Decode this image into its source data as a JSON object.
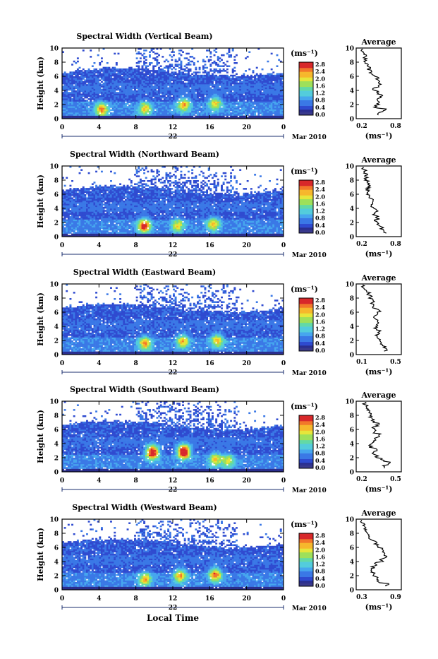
{
  "figure": {
    "bottom_axis_label": "Local Time"
  },
  "shared": {
    "ylabel": "Height (km)",
    "ticks_x": [
      "0",
      "4",
      "8",
      "12",
      "16",
      "20",
      "0"
    ],
    "ticks_y": [
      "0",
      "2",
      "4",
      "6",
      "8",
      "10"
    ],
    "day_label": "22",
    "month_label": "Mar 2010",
    "unit_label": "(ms⁻¹)",
    "colorbar_ticks": [
      "0.0",
      "0.4",
      "0.8",
      "1.2",
      "1.6",
      "2.0",
      "2.4",
      "2.8"
    ],
    "avg_title": "Average",
    "avg_xlabel": "(ms⁻¹)"
  },
  "colors": {
    "colormap": [
      "#2a2e8f",
      "#2f4bd0",
      "#3a78e6",
      "#46a6ee",
      "#53ccdc",
      "#63d9a6",
      "#9ee05a",
      "#e6e63a",
      "#f6b72c",
      "#f2772a",
      "#d8282a"
    ],
    "low_floor": "#3a3a8c"
  },
  "chart_data": [
    {
      "type": "heatmap",
      "title": "Spectral Width (Vertical Beam)",
      "xlim": [
        0,
        24
      ],
      "ylim": [
        0,
        10
      ],
      "colorbar": [
        0.0,
        2.8
      ],
      "hotspots": [
        {
          "t": 4.3,
          "h": 1.3,
          "v": 1.7
        },
        {
          "t": 9.0,
          "h": 1.4,
          "v": 1.4
        },
        {
          "t": 13.2,
          "h": 2.0,
          "v": 1.6
        },
        {
          "t": 16.6,
          "h": 2.2,
          "v": 1.4
        }
      ],
      "average_profile": {
        "xlim": [
          0.2,
          0.8
        ],
        "xticks": [
          "0.2",
          "0.8"
        ],
        "height": [
          0.5,
          1.0,
          1.5,
          2.0,
          2.5,
          3.0,
          3.5,
          4.0,
          4.5,
          5.0,
          5.5,
          6.0,
          6.5,
          7.0,
          7.5,
          8.0,
          8.5,
          9.0,
          9.5
        ],
        "width": [
          0.5,
          0.6,
          0.45,
          0.5,
          0.48,
          0.55,
          0.5,
          0.42,
          0.52,
          0.5,
          0.48,
          0.4,
          0.35,
          0.32,
          0.28,
          0.27,
          0.26,
          0.25,
          0.22
        ]
      }
    },
    {
      "type": "heatmap",
      "title": "Spectral Width (Northward Beam)",
      "xlim": [
        0,
        24
      ],
      "ylim": [
        0,
        10
      ],
      "colorbar": [
        0.0,
        2.8
      ],
      "hotspots": [
        {
          "t": 8.9,
          "h": 1.5,
          "v": 2.1
        },
        {
          "t": 12.5,
          "h": 1.6,
          "v": 1.3
        },
        {
          "t": 16.4,
          "h": 1.8,
          "v": 1.5
        }
      ],
      "average_profile": {
        "xlim": [
          0.2,
          0.8
        ],
        "xticks": [
          "0.2",
          "0.8"
        ],
        "height": [
          0.5,
          1.0,
          1.5,
          2.0,
          2.5,
          3.0,
          3.5,
          4.0,
          4.5,
          5.0,
          5.5,
          6.0,
          6.5,
          7.0,
          7.5,
          8.0,
          8.5,
          9.0,
          9.5
        ],
        "width": [
          0.6,
          0.55,
          0.5,
          0.45,
          0.48,
          0.42,
          0.46,
          0.38,
          0.36,
          0.4,
          0.35,
          0.32,
          0.3,
          0.34,
          0.3,
          0.28,
          0.27,
          0.25,
          0.22
        ]
      }
    },
    {
      "type": "heatmap",
      "title": "Spectral Width (Eastward Beam)",
      "xlim": [
        0,
        24
      ],
      "ylim": [
        0,
        10
      ],
      "colorbar": [
        0.0,
        2.8
      ],
      "hotspots": [
        {
          "t": 9.0,
          "h": 1.6,
          "v": 1.6
        },
        {
          "t": 13.1,
          "h": 1.9,
          "v": 1.5
        },
        {
          "t": 16.8,
          "h": 2.0,
          "v": 1.4
        }
      ],
      "average_profile": {
        "xlim": [
          0.1,
          0.5
        ],
        "xticks": [
          "0.1",
          "0.5"
        ],
        "height": [
          0.5,
          1.0,
          1.5,
          2.0,
          2.5,
          3.0,
          3.5,
          4.0,
          4.5,
          5.0,
          5.5,
          6.0,
          6.5,
          7.0,
          7.5,
          8.0,
          8.5,
          9.0,
          9.5
        ],
        "width": [
          0.38,
          0.36,
          0.33,
          0.3,
          0.28,
          0.3,
          0.26,
          0.28,
          0.3,
          0.26,
          0.27,
          0.3,
          0.25,
          0.22,
          0.24,
          0.2,
          0.18,
          0.15,
          0.12
        ]
      }
    },
    {
      "type": "heatmap",
      "title": "Spectral Width (Southward Beam)",
      "xlim": [
        0,
        24
      ],
      "ylim": [
        0,
        10
      ],
      "colorbar": [
        0.0,
        2.8
      ],
      "hotspots": [
        {
          "t": 9.8,
          "h": 2.8,
          "v": 2.6
        },
        {
          "t": 13.2,
          "h": 2.9,
          "v": 2.8
        },
        {
          "t": 16.6,
          "h": 1.8,
          "v": 1.4
        },
        {
          "t": 18.0,
          "h": 1.6,
          "v": 1.2
        }
      ],
      "average_profile": {
        "xlim": [
          0.2,
          0.5
        ],
        "xticks": [
          "0.2",
          "0.5"
        ],
        "height": [
          0.5,
          1.0,
          1.5,
          2.0,
          2.5,
          3.0,
          3.5,
          4.0,
          4.5,
          5.0,
          5.5,
          6.0,
          6.5,
          7.0,
          7.5,
          8.0,
          8.5,
          9.0,
          9.5
        ],
        "width": [
          0.4,
          0.45,
          0.38,
          0.33,
          0.3,
          0.32,
          0.28,
          0.3,
          0.33,
          0.35,
          0.32,
          0.3,
          0.34,
          0.3,
          0.28,
          0.27,
          0.26,
          0.24,
          0.22
        ]
      }
    },
    {
      "type": "heatmap",
      "title": "Spectral Width (Westward Beam)",
      "xlim": [
        0,
        24
      ],
      "ylim": [
        0,
        10
      ],
      "colorbar": [
        0.0,
        2.8
      ],
      "hotspots": [
        {
          "t": 9.0,
          "h": 1.5,
          "v": 1.5
        },
        {
          "t": 12.8,
          "h": 2.0,
          "v": 1.6
        },
        {
          "t": 16.6,
          "h": 2.2,
          "v": 1.8
        }
      ],
      "average_profile": {
        "xlim": [
          0.3,
          0.9
        ],
        "xticks": [
          "0.3",
          "0.9"
        ],
        "height": [
          0.5,
          1.0,
          1.5,
          2.0,
          2.5,
          3.0,
          3.5,
          4.0,
          4.5,
          5.0,
          5.5,
          6.0,
          6.5,
          7.0,
          7.5,
          8.0,
          8.5,
          9.0,
          9.5
        ],
        "width": [
          0.75,
          0.6,
          0.55,
          0.5,
          0.45,
          0.5,
          0.55,
          0.65,
          0.72,
          0.7,
          0.65,
          0.6,
          0.55,
          0.45,
          0.42,
          0.38,
          0.35,
          0.32,
          0.3
        ]
      }
    }
  ]
}
